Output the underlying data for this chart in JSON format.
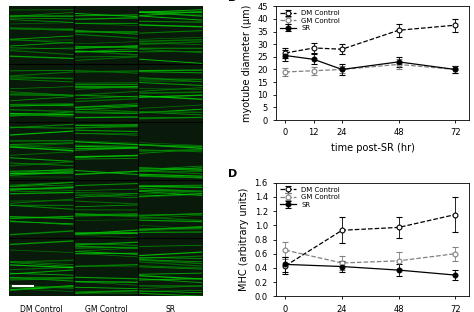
{
  "panel_B": {
    "xlabel": "time post-SR (hr)",
    "ylabel": "myotube diameter (μm)",
    "xlim": [
      -4,
      78
    ],
    "ylim": [
      0,
      45
    ],
    "yticks": [
      0,
      5,
      10,
      15,
      20,
      25,
      30,
      35,
      40,
      45
    ],
    "xticks": [
      0,
      12,
      24,
      48,
      72
    ],
    "series": {
      "DM Control": {
        "x": [
          0,
          12,
          24,
          48,
          72
        ],
        "y": [
          26.5,
          28.5,
          28.0,
          35.5,
          37.5
        ],
        "yerr": [
          2.0,
          2.0,
          2.0,
          2.5,
          2.5
        ],
        "linestyle": "--",
        "color": "black",
        "markerfacecolor": "white"
      },
      "GM Control": {
        "x": [
          0,
          12,
          24,
          48,
          72
        ],
        "y": [
          19.0,
          19.5,
          20.0,
          22.0,
          20.0
        ],
        "yerr": [
          1.5,
          1.5,
          1.5,
          2.0,
          1.5
        ],
        "linestyle": "--",
        "color": "gray",
        "markerfacecolor": "white"
      },
      "SR": {
        "x": [
          0,
          12,
          24,
          48,
          72
        ],
        "y": [
          25.5,
          24.0,
          20.0,
          23.0,
          20.0
        ],
        "yerr": [
          2.0,
          2.0,
          2.0,
          2.0,
          1.5
        ],
        "linestyle": "-",
        "color": "black",
        "markerfacecolor": "black"
      }
    }
  },
  "panel_D": {
    "xlabel": "time post-SR (hr)",
    "ylabel": "MHC (arbitrary units)",
    "xlim": [
      -4,
      78
    ],
    "ylim": [
      0,
      1.6
    ],
    "yticks": [
      0,
      0.2,
      0.4,
      0.6,
      0.8,
      1.0,
      1.2,
      1.4,
      1.6
    ],
    "xticks": [
      0,
      24,
      48,
      72
    ],
    "series": {
      "DM Control": {
        "x": [
          0,
          24,
          48,
          72
        ],
        "y": [
          0.43,
          0.93,
          0.97,
          1.15
        ],
        "yerr": [
          0.12,
          0.18,
          0.15,
          0.25
        ],
        "linestyle": "--",
        "color": "black",
        "markerfacecolor": "white"
      },
      "GM Control": {
        "x": [
          0,
          24,
          48,
          72
        ],
        "y": [
          0.65,
          0.47,
          0.5,
          0.6
        ],
        "yerr": [
          0.12,
          0.1,
          0.12,
          0.1
        ],
        "linestyle": "--",
        "color": "gray",
        "markerfacecolor": "white"
      },
      "SR": {
        "x": [
          0,
          24,
          48,
          72
        ],
        "y": [
          0.45,
          0.42,
          0.37,
          0.3
        ],
        "yerr": [
          0.1,
          0.08,
          0.08,
          0.07
        ],
        "linestyle": "-",
        "color": "black",
        "markerfacecolor": "black"
      }
    }
  },
  "legend_order": [
    "DM Control",
    "GM Control",
    "SR"
  ],
  "font_size": 7,
  "tick_size": 6
}
